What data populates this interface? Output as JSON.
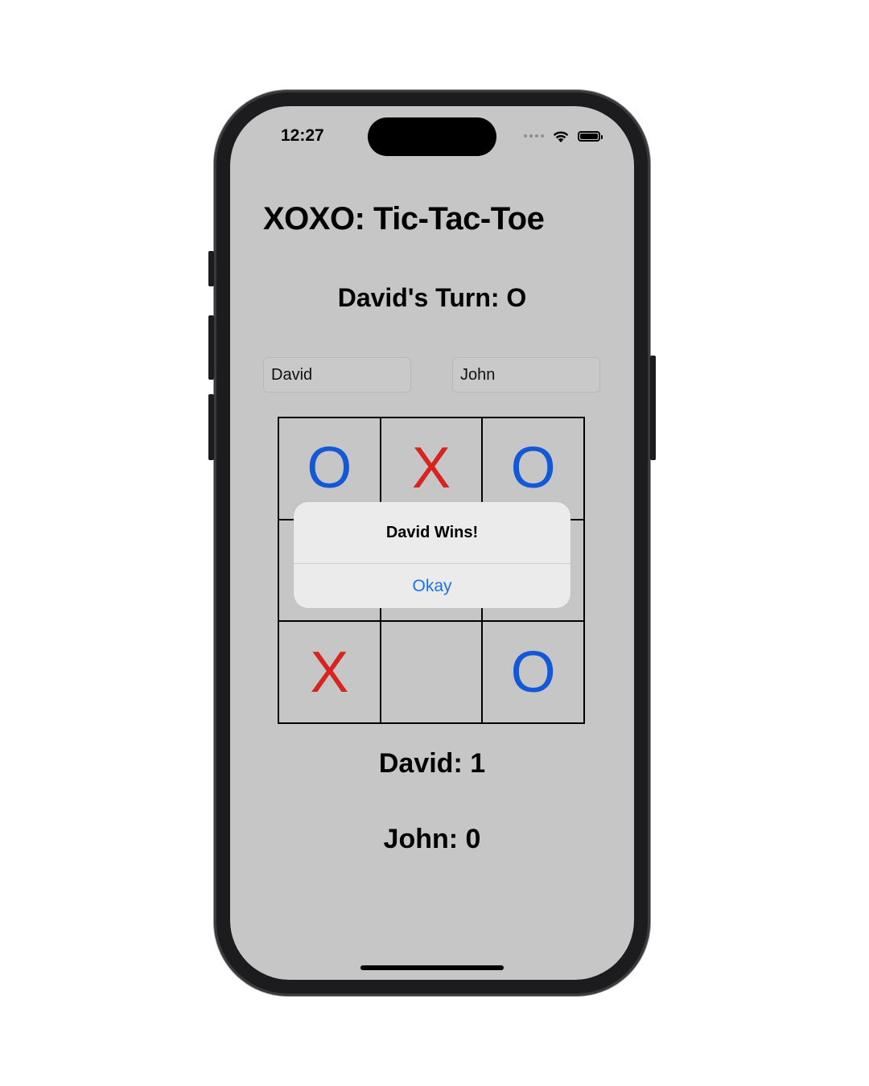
{
  "status_bar": {
    "time": "12:27"
  },
  "app": {
    "title": "XOXO: Tic-Tac-Toe",
    "turn_text": "David's Turn: O"
  },
  "players": {
    "player1_name": "David",
    "player2_name": "John"
  },
  "board": {
    "cells": [
      "O",
      "X",
      "O",
      "",
      "",
      "",
      "X",
      "",
      "O"
    ]
  },
  "alert": {
    "title": "David Wins!",
    "button_label": "Okay"
  },
  "scores": {
    "player1": "David: 1",
    "player2": "John: 0"
  },
  "colors": {
    "x_mark": "#d8241f",
    "o_mark": "#1358d6",
    "screen_background": "#c6c6c6",
    "alert_button": "#1a73e8"
  }
}
